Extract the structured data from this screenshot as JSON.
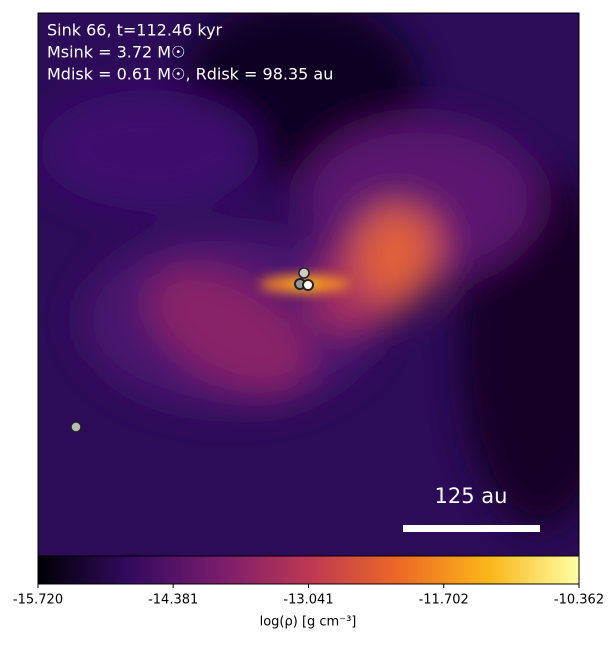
{
  "chart_data": {
    "type": "heatmap",
    "annotations": [
      "Sink 66, t=112.46 kyr",
      "Msink = 3.72 M☉",
      "Mdisk = 0.61 M☉, Rdisk = 98.35 au"
    ],
    "scale_bar_label": "125 au",
    "colorbar_label": "log(ρ) [g cm⁻³]",
    "clim": [
      -15.72,
      -10.362
    ],
    "colorbar_ticks": [
      {
        "value": -15.72,
        "label": "-15.720"
      },
      {
        "value": -14.381,
        "label": "-14.381"
      },
      {
        "value": -13.041,
        "label": "-13.041"
      },
      {
        "value": -11.702,
        "label": "-11.702"
      },
      {
        "value": -10.362,
        "label": "-10.362"
      }
    ],
    "colormap": [
      "#000004",
      "#320a5e",
      "#781c6d",
      "#bc3754",
      "#ed6925",
      "#fbb61a",
      "#fcffa4"
    ]
  }
}
